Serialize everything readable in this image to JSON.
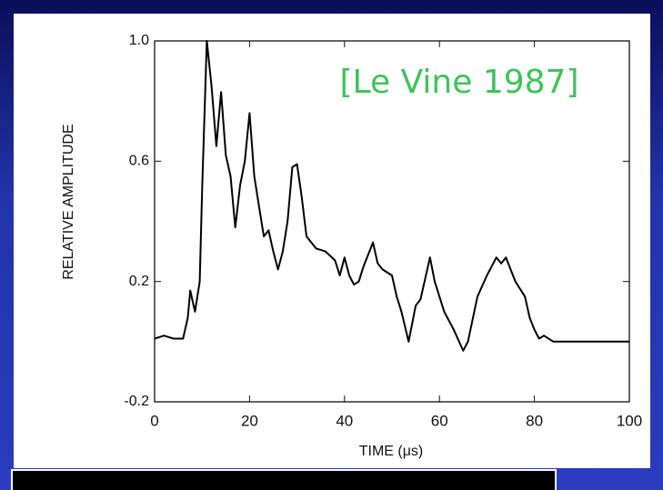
{
  "chart_data": {
    "type": "line",
    "annotation": "[Le Vine 1987]",
    "xlabel": "TIME (μs)",
    "ylabel": "RELATIVE AMPLITUDE",
    "x": [
      0,
      2,
      4,
      6,
      7,
      7.5,
      8.5,
      9.5,
      10,
      11,
      12,
      13,
      14,
      15,
      16,
      17,
      18,
      19,
      20,
      21,
      22,
      23,
      24,
      25,
      26,
      27,
      28,
      29,
      30,
      31,
      32,
      33,
      34,
      36,
      38,
      39,
      40,
      41,
      42,
      43,
      44,
      46,
      47,
      48,
      50,
      51,
      52,
      53.5,
      55,
      56,
      58,
      59,
      61,
      63,
      65,
      66,
      68,
      70,
      72,
      73,
      74,
      76,
      78,
      79,
      80,
      81,
      82,
      84,
      100
    ],
    "values": [
      0.01,
      0.02,
      0.01,
      0.01,
      0.08,
      0.17,
      0.1,
      0.2,
      0.5,
      1.0,
      0.85,
      0.65,
      0.83,
      0.62,
      0.55,
      0.38,
      0.52,
      0.6,
      0.76,
      0.55,
      0.45,
      0.35,
      0.37,
      0.3,
      0.24,
      0.3,
      0.4,
      0.58,
      0.59,
      0.48,
      0.35,
      0.33,
      0.31,
      0.3,
      0.27,
      0.22,
      0.28,
      0.22,
      0.19,
      0.2,
      0.25,
      0.33,
      0.26,
      0.24,
      0.22,
      0.15,
      0.1,
      0.0,
      0.12,
      0.14,
      0.28,
      0.2,
      0.1,
      0.04,
      -0.03,
      0.0,
      0.15,
      0.22,
      0.28,
      0.26,
      0.28,
      0.2,
      0.15,
      0.08,
      0.04,
      0.01,
      0.02,
      0.0,
      0.0
    ],
    "color": "#000000",
    "xlim": [
      0,
      100
    ],
    "xticks": [
      0,
      20,
      40,
      60,
      80,
      100
    ],
    "ylim": [
      -0.2,
      1.0
    ],
    "yticks": [
      {
        "value": 1.0,
        "label": "1.0"
      },
      0.6,
      0.2,
      -0.2
    ],
    "grid": false
  }
}
